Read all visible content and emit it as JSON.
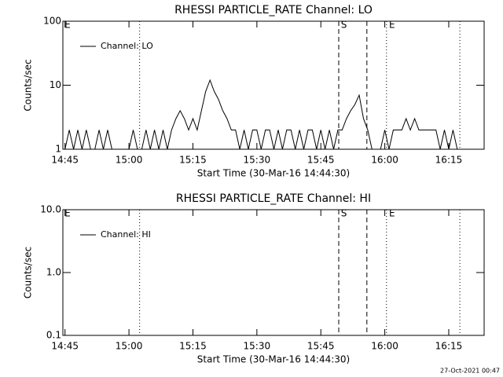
{
  "chart_data": [
    {
      "type": "line",
      "title": "RHESSI PARTICLE_RATE Channel: LO",
      "xlabel": "Start Time (30-Mar-16 14:44:30)",
      "ylabel": "Counts/sec",
      "log_y": true,
      "legend": "top-left",
      "xlim": [
        884.5,
        983.3
      ],
      "xticks": [
        {
          "value": 885,
          "label": "14:45"
        },
        {
          "value": 900,
          "label": "15:00"
        },
        {
          "value": 915,
          "label": "15:15"
        },
        {
          "value": 930,
          "label": "15:30"
        },
        {
          "value": 945,
          "label": "15:45"
        },
        {
          "value": 960,
          "label": "16:00"
        },
        {
          "value": 975,
          "label": "16:15"
        }
      ],
      "ylim": [
        1,
        100
      ],
      "yticks": [
        1,
        10,
        100
      ],
      "vlines": [
        {
          "x": 902.5,
          "style": "dotted"
        },
        {
          "x": 949.2,
          "style": "dashed"
        },
        {
          "x": 955.8,
          "style": "dashed"
        },
        {
          "x": 960.4,
          "style": "dotted"
        },
        {
          "x": 977.6,
          "style": "dotted"
        }
      ],
      "annotations": [
        {
          "text": "E",
          "x": 884.9
        },
        {
          "text": "S",
          "x": 949.7
        },
        {
          "text": "E",
          "x": 961.0
        }
      ],
      "series": [
        {
          "name": "Channel: LO",
          "color": "#000000",
          "x": [
            885,
            886,
            887,
            888,
            889,
            890,
            891,
            892,
            893,
            894,
            895,
            896,
            897,
            898,
            899,
            900,
            901,
            902,
            903,
            904,
            905,
            906,
            907,
            908,
            909,
            910,
            911,
            912,
            913,
            914,
            915,
            916,
            917,
            918,
            919,
            920,
            921,
            922,
            923,
            924,
            925,
            926,
            927,
            928,
            929,
            930,
            931,
            932,
            933,
            934,
            935,
            936,
            937,
            938,
            939,
            940,
            941,
            942,
            943,
            944,
            945,
            946,
            947,
            948,
            949,
            950,
            951,
            952,
            953,
            954,
            955,
            956,
            957,
            958,
            959,
            960,
            961,
            962,
            963,
            964,
            965,
            966,
            967,
            968,
            969,
            970,
            971,
            972,
            973,
            974,
            975,
            976,
            977,
            978
          ],
          "values": [
            1,
            2,
            1,
            2,
            1,
            2,
            1,
            1,
            2,
            1,
            2,
            1,
            1,
            1,
            1,
            1,
            2,
            1,
            1,
            2,
            1,
            2,
            1,
            2,
            1,
            2,
            3,
            4,
            3,
            2,
            3,
            2,
            4,
            8,
            12,
            8,
            6,
            4,
            3,
            2,
            2,
            1,
            2,
            1,
            2,
            2,
            1,
            2,
            2,
            1,
            2,
            1,
            2,
            2,
            1,
            2,
            1,
            2,
            2,
            1,
            2,
            1,
            2,
            1,
            2,
            2,
            3,
            4,
            5,
            7,
            3,
            2,
            1,
            1,
            1,
            2,
            1,
            2,
            2,
            2,
            3,
            2,
            3,
            2,
            2,
            2,
            2,
            2,
            1,
            2,
            1,
            2,
            1,
            1
          ]
        }
      ]
    },
    {
      "type": "line",
      "title": "RHESSI PARTICLE_RATE Channel: HI",
      "xlabel": "Start Time (30-Mar-16 14:44:30)",
      "ylabel": "Counts/sec",
      "log_y": true,
      "legend": "top-left",
      "xlim": [
        884.5,
        983.3
      ],
      "xticks": [
        {
          "value": 885,
          "label": "14:45"
        },
        {
          "value": 900,
          "label": "15:00"
        },
        {
          "value": 915,
          "label": "15:15"
        },
        {
          "value": 930,
          "label": "15:30"
        },
        {
          "value": 945,
          "label": "15:45"
        },
        {
          "value": 960,
          "label": "16:00"
        },
        {
          "value": 975,
          "label": "16:15"
        }
      ],
      "ylim": [
        0.1,
        10
      ],
      "yticks": [
        0.1,
        {
          "value": 1,
          "label": "1.0"
        },
        {
          "value": 10,
          "label": "10.0"
        }
      ],
      "vlines": [
        {
          "x": 902.5,
          "style": "dotted"
        },
        {
          "x": 949.2,
          "style": "dashed"
        },
        {
          "x": 955.8,
          "style": "dashed"
        },
        {
          "x": 960.4,
          "style": "dotted"
        },
        {
          "x": 977.6,
          "style": "dotted"
        }
      ],
      "annotations": [
        {
          "text": "E",
          "x": 884.9
        },
        {
          "text": "S",
          "x": 949.7
        },
        {
          "text": "E",
          "x": 961.0
        }
      ],
      "series": [
        {
          "name": "Channel: HI",
          "color": "#000000",
          "x": [],
          "values": []
        }
      ]
    }
  ],
  "footer": "27-Oct-2021 00:47"
}
